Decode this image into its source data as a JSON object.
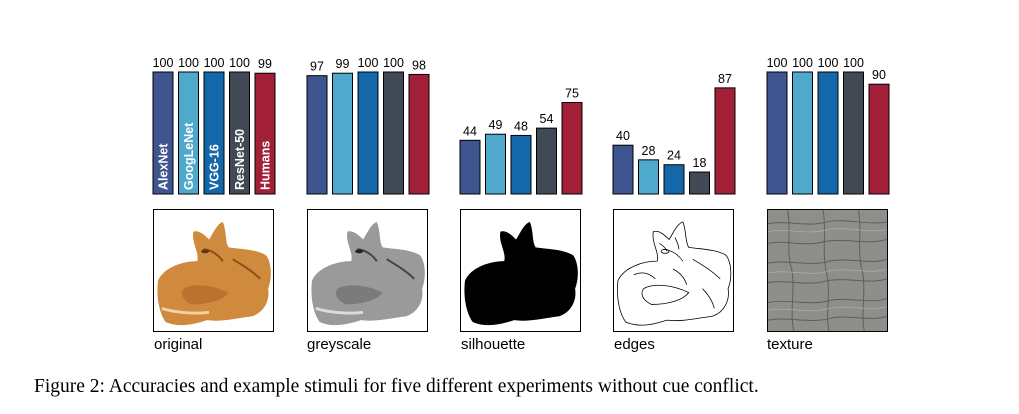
{
  "chart_data": {
    "type": "bar",
    "networks": [
      "AlexNet",
      "GoogLeNet",
      "VGG-16",
      "ResNet-50",
      "Humans"
    ],
    "colors": [
      "#3f5590",
      "#4fa9cc",
      "#1467a9",
      "#414a54",
      "#a11f37"
    ],
    "ylim": [
      0,
      100
    ],
    "experiments": [
      {
        "name": "original",
        "values": [
          100,
          100,
          100,
          100,
          99
        ]
      },
      {
        "name": "greyscale",
        "values": [
          97,
          99,
          100,
          100,
          98
        ]
      },
      {
        "name": "silhouette",
        "values": [
          44,
          49,
          48,
          54,
          75
        ]
      },
      {
        "name": "edges",
        "values": [
          40,
          28,
          24,
          18,
          87
        ]
      },
      {
        "name": "texture",
        "values": [
          100,
          100,
          100,
          100,
          90
        ]
      }
    ]
  },
  "stimuli": [
    {
      "label": "original"
    },
    {
      "label": "greyscale"
    },
    {
      "label": "silhouette"
    },
    {
      "label": "edges"
    },
    {
      "label": "texture"
    }
  ],
  "caption": "Figure 2: Accuracies and example stimuli for five different experiments without cue conflict."
}
